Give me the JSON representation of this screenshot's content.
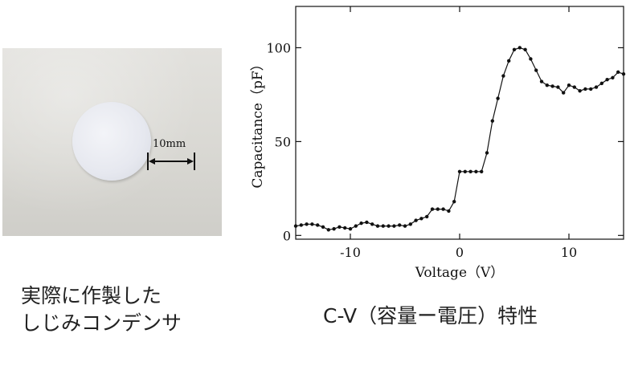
{
  "photo": {
    "scale_label": "10mm"
  },
  "captions": {
    "left_line1": "実際に作製した",
    "left_line2": "しじみコンデンサ",
    "right": "C-V（容量ー電圧）特性"
  },
  "chart_data": {
    "type": "line",
    "xlabel": "Voltage（V）",
    "ylabel": "Capacitance（pF）",
    "xlim": [
      -15,
      15
    ],
    "ylim": [
      -2,
      122
    ],
    "xticks": [
      -10,
      0,
      10
    ],
    "xtick_labels": [
      "-10",
      "0",
      "10"
    ],
    "yticks": [
      0,
      50,
      100
    ],
    "ytick_labels": [
      "0",
      "50",
      "100"
    ],
    "grid": false,
    "series": [
      {
        "x": [
          -15,
          -14.5,
          -14,
          -13.5,
          -13,
          -12.5,
          -12,
          -11.5,
          -11,
          -10.5,
          -10,
          -9.5,
          -9,
          -8.5,
          -8,
          -7.5,
          -7,
          -6.5,
          -6,
          -5.5,
          -5,
          -4.5,
          -4,
          -3.5,
          -3,
          -2.5,
          -2,
          -1.5,
          -1,
          -0.5,
          0,
          0.5,
          1,
          1.5,
          2,
          2.5,
          3,
          3.5,
          4,
          4.5,
          5,
          5.5,
          6,
          6.5,
          7,
          7.5,
          8,
          8.5,
          9,
          9.5,
          10,
          10.5,
          11,
          11.5,
          12,
          12.5,
          13,
          13.5,
          14,
          14.5,
          15
        ],
        "y": [
          5,
          5.5,
          6,
          6,
          5.5,
          4.5,
          3,
          3.5,
          4.5,
          4,
          3.5,
          5,
          6.5,
          7,
          6,
          5,
          5,
          5,
          5,
          5.5,
          5,
          6,
          8,
          9,
          10,
          14,
          14,
          14,
          13,
          18,
          34,
          34,
          34,
          34,
          34,
          44,
          61,
          73,
          85,
          93,
          99,
          100,
          99,
          94,
          88,
          82,
          80,
          79.5,
          79,
          76,
          80,
          79,
          77,
          78,
          78,
          79,
          81,
          83,
          84,
          87,
          86
        ]
      }
    ]
  }
}
